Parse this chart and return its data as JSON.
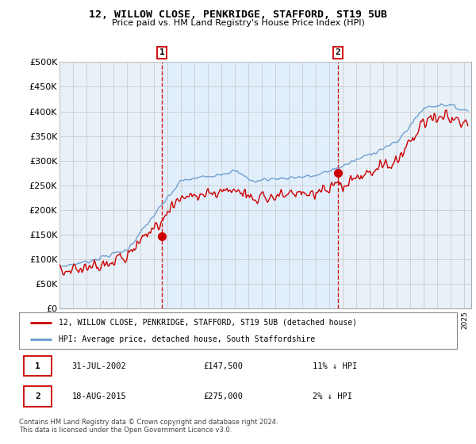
{
  "title": "12, WILLOW CLOSE, PENKRIDGE, STAFFORD, ST19 5UB",
  "subtitle": "Price paid vs. HM Land Registry's House Price Index (HPI)",
  "ylim": [
    0,
    500000
  ],
  "yticks": [
    0,
    50000,
    100000,
    150000,
    200000,
    250000,
    300000,
    350000,
    400000,
    450000,
    500000
  ],
  "xlim_start": 1995.0,
  "xlim_end": 2025.5,
  "sale1_x": 2002.58,
  "sale1_y": 147500,
  "sale2_x": 2015.63,
  "sale2_y": 275000,
  "sale1_label": "31-JUL-2002",
  "sale1_price": "£147,500",
  "sale1_hpi": "11% ↓ HPI",
  "sale2_label": "18-AUG-2015",
  "sale2_price": "£275,000",
  "sale2_hpi": "2% ↓ HPI",
  "red_line_label": "12, WILLOW CLOSE, PENKRIDGE, STAFFORD, ST19 5UB (detached house)",
  "blue_line_label": "HPI: Average price, detached house, South Staffordshire",
  "footer": "Contains HM Land Registry data © Crown copyright and database right 2024.\nThis data is licensed under the Open Government Licence v3.0.",
  "red_color": "#cc0000",
  "blue_color": "#6699cc",
  "bg_fill_color": "#ddeeff",
  "vline_color": "#cc0000",
  "background_color": "#ffffff",
  "grid_color": "#cccccc"
}
